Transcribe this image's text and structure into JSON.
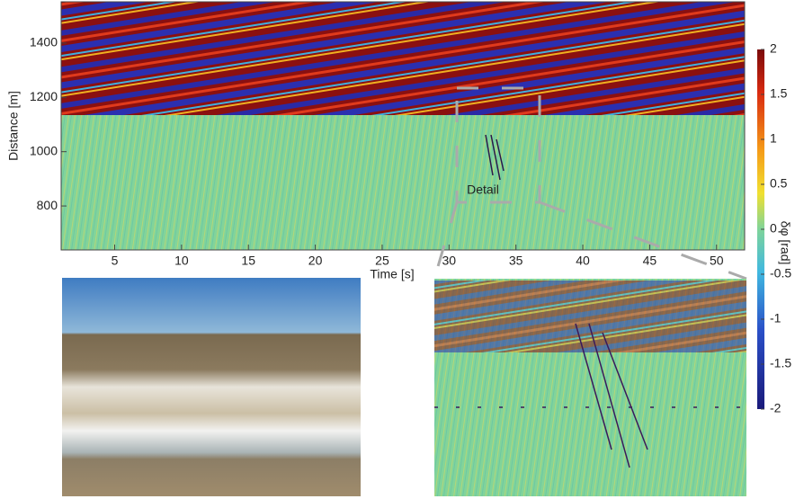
{
  "chart_data": {
    "type": "heatmap",
    "xlabel": "Time [s]",
    "ylabel": "Distance [m]",
    "xlim": [
      1,
      52.1
    ],
    "xticks": [
      5,
      10,
      15,
      20,
      25,
      30,
      35,
      40,
      45,
      50
    ],
    "ylim": [
      638,
      1552
    ],
    "yticks": [
      800,
      1000,
      1200,
      1400
    ],
    "colorbar": {
      "label": "δφ [rad]",
      "lim": [
        -2,
        2
      ],
      "ticks": [
        2,
        1.5,
        1,
        0.5,
        0,
        -0.5,
        -1,
        -1.5,
        -2
      ]
    },
    "annotation": "Detail"
  }
}
